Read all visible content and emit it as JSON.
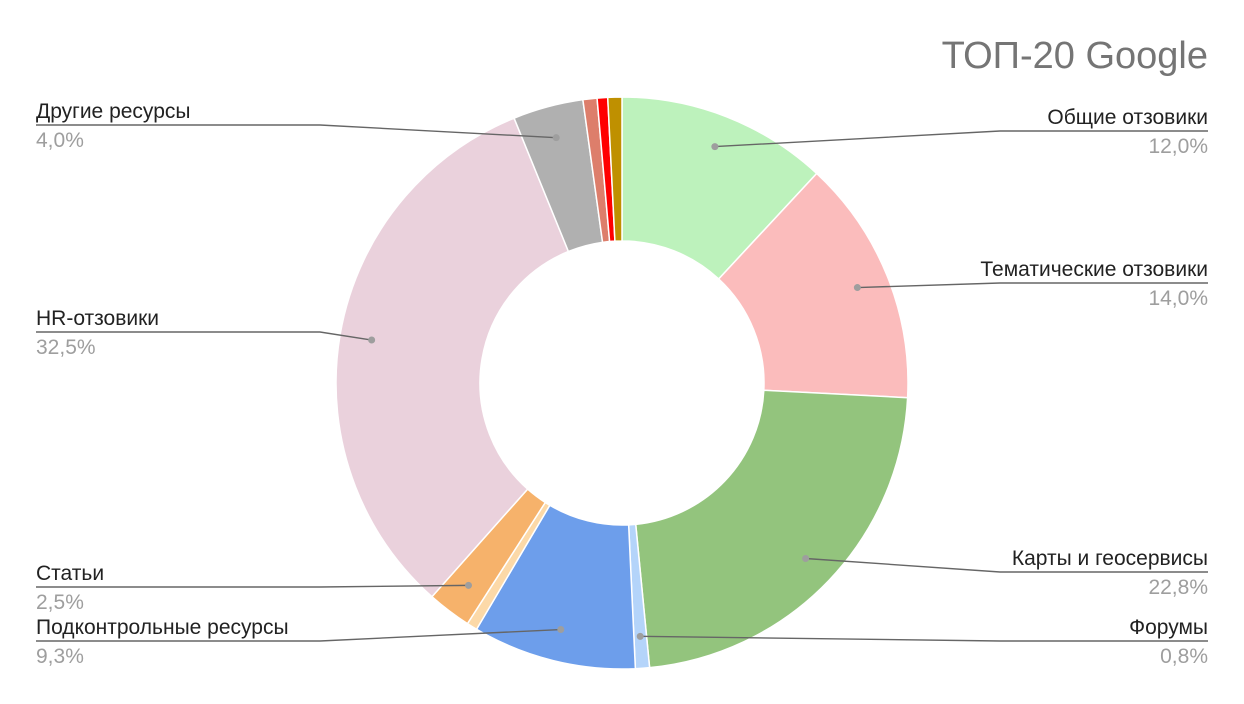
{
  "chart_data": {
    "type": "pie",
    "donut": true,
    "title": "ТОП-20 Google",
    "slices": [
      {
        "name": "Общие отзовики",
        "value": 12.0,
        "label": "12,0%",
        "color": "#bdf2bc"
      },
      {
        "name": "Тематические отзовики",
        "value": 14.0,
        "label": "14,0%",
        "color": "#fbbcbc"
      },
      {
        "name": "Карты и геосервисы",
        "value": 22.8,
        "label": "22,8%",
        "color": "#93c47d"
      },
      {
        "name": "Форумы",
        "value": 0.8,
        "label": "0,8%",
        "color": "#b4d4fa"
      },
      {
        "name": "Подконтрольные ресурсы",
        "value": 9.3,
        "label": "9,3%",
        "color": "#6d9eeb"
      },
      {
        "name": null,
        "value": 0.6,
        "label": null,
        "color": "#fcd9a8"
      },
      {
        "name": "Статьи",
        "value": 2.5,
        "label": "2,5%",
        "color": "#f6b26b"
      },
      {
        "name": "HR-отзовики",
        "value": 32.5,
        "label": "32,5%",
        "color": "#ead1dc"
      },
      {
        "name": "Другие ресурсы",
        "value": 4.0,
        "label": "4,0%",
        "color": "#b0b0b0"
      },
      {
        "name": null,
        "value": 0.8,
        "label": null,
        "color": "#dd7e6b"
      },
      {
        "name": null,
        "value": 0.6,
        "label": null,
        "color": "#ff0000"
      },
      {
        "name": null,
        "value": 0.8,
        "label": null,
        "color": "#bf9000"
      }
    ],
    "legend": "none",
    "labels": "outside-with-leader-lines"
  }
}
